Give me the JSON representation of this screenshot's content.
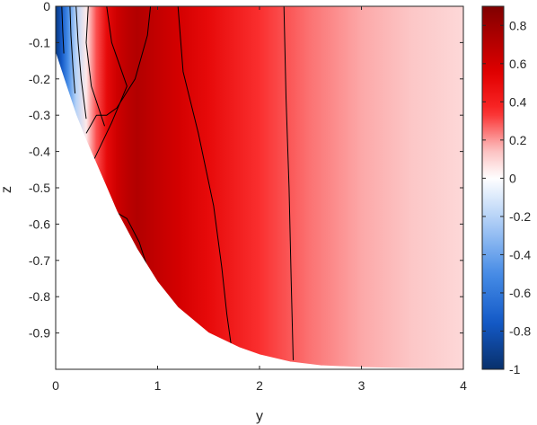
{
  "chart_data": {
    "type": "heatmap",
    "title": "",
    "xlabel": "y",
    "ylabel": "z",
    "xlim": [
      0,
      4
    ],
    "ylim": [
      -1,
      0
    ],
    "x_ticks": [
      "0",
      "1",
      "2",
      "3",
      "4"
    ],
    "y_ticks": [
      "0",
      "-0.1",
      "-0.2",
      "-0.3",
      "-0.4",
      "-0.5",
      "-0.6",
      "-0.7",
      "-0.8",
      "-0.9"
    ],
    "colorbar": {
      "range": [
        -1,
        0.9
      ],
      "ticks": [
        "0.8",
        "0.6",
        "0.4",
        "0.2",
        "0",
        "-0.2",
        "-0.4",
        "-0.6",
        "-0.8",
        "-1"
      ],
      "colormap": "blue-white-red",
      "colors": {
        "low": "#08306b",
        "mid": "#ffffff",
        "high": "#800000"
      }
    },
    "domain_boundary": {
      "y": [
        0,
        0.1,
        0.2,
        0.3,
        0.4,
        0.5,
        0.6,
        0.8,
        1.0,
        1.2,
        1.5,
        1.8,
        2.0,
        2.3,
        2.6,
        3.0,
        3.5,
        4.0
      ],
      "z": [
        -0.13,
        -0.215,
        -0.3,
        -0.37,
        -0.435,
        -0.5,
        -0.565,
        -0.67,
        -0.76,
        -0.83,
        -0.9,
        -0.94,
        -0.96,
        -0.98,
        -0.99,
        -0.995,
        -0.998,
        -1.0
      ]
    },
    "field_profile": {
      "y": [
        0,
        0.06,
        0.12,
        0.2,
        0.3,
        0.4,
        0.5,
        0.6,
        0.7,
        0.8,
        1.0,
        1.2,
        1.5,
        2.0,
        2.5,
        3.0,
        3.5,
        4.0
      ],
      "value": [
        -0.95,
        -0.75,
        -0.5,
        -0.2,
        0.05,
        0.3,
        0.5,
        0.62,
        0.68,
        0.72,
        0.66,
        0.6,
        0.5,
        0.34,
        0.25,
        0.18,
        0.13,
        0.09
      ]
    },
    "contours": [
      {
        "y": [
          0.06,
          0.07,
          0.08
        ],
        "z": [
          0,
          -0.07,
          -0.13
        ]
      },
      {
        "y": [
          0.14,
          0.15,
          0.17,
          0.19
        ],
        "z": [
          0,
          -0.08,
          -0.17,
          -0.24
        ]
      },
      {
        "y": [
          0.2,
          0.22,
          0.25,
          0.3
        ],
        "z": [
          0,
          -0.1,
          -0.2,
          -0.31
        ]
      },
      {
        "y": [
          0.32,
          0.3,
          0.35,
          0.48
        ],
        "z": [
          0,
          -0.1,
          -0.22,
          -0.33
        ]
      },
      {
        "y": [
          0.5,
          0.55,
          0.7,
          0.55,
          0.38
        ],
        "z": [
          0,
          -0.1,
          -0.22,
          -0.32,
          -0.42
        ]
      },
      {
        "y": [
          0.93,
          0.9,
          0.78,
          0.6,
          0.5,
          0.4,
          0.3
        ],
        "z": [
          0,
          -0.08,
          -0.2,
          -0.28,
          -0.3,
          -0.3,
          -0.35
        ]
      },
      {
        "y": [
          1.2,
          1.25,
          1.4,
          1.55,
          1.63,
          1.68,
          1.72
        ],
        "z": [
          0,
          -0.18,
          -0.35,
          -0.55,
          -0.72,
          -0.85,
          -0.93
        ]
      },
      {
        "y": [
          2.24,
          2.26,
          2.29,
          2.31,
          2.33
        ],
        "z": [
          0,
          -0.25,
          -0.5,
          -0.75,
          -0.975
        ]
      },
      {
        "y": [
          0.58,
          0.7,
          0.82,
          0.9,
          0.95,
          1.0
        ],
        "z": [
          -0.565,
          -0.585,
          -0.65,
          -0.72,
          -0.77,
          -0.8
        ]
      }
    ]
  }
}
